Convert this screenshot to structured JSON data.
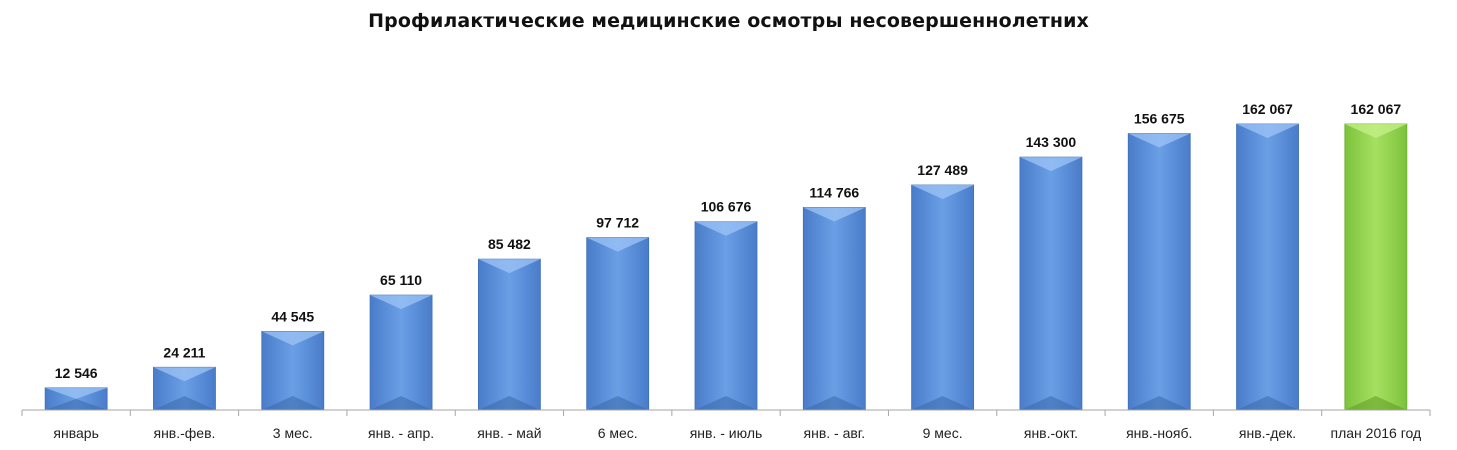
{
  "chart_data": {
    "type": "bar",
    "title": "Профилактические медицинские осмотры несовершеннолетних",
    "xlabel": "",
    "ylabel": "",
    "categories": [
      "январь",
      "янв.-фев.",
      "3 мес.",
      "янв. - апр.",
      "янв. - май",
      "6 мес.",
      "янв. - июль",
      "янв. - авг.",
      "9 мес.",
      "янв.-окт.",
      "янв.-нояб.",
      "янв.-дек.",
      "план 2016 год"
    ],
    "values": [
      12546,
      24211,
      44545,
      65110,
      85482,
      97712,
      106676,
      114766,
      127489,
      143300,
      156675,
      162067,
      162067
    ],
    "value_labels": [
      "12 546",
      "24 211",
      "44 545",
      "65 110",
      "85 482",
      "97 712",
      "106 676",
      "114 766",
      "127 489",
      "143 300",
      "156 675",
      "162 067",
      "162 067"
    ],
    "ylim": [
      0,
      170000
    ],
    "grid": false,
    "legend": "none",
    "bar_colors": [
      "#5b8fdd",
      "#5b8fdd",
      "#5b8fdd",
      "#5b8fdd",
      "#5b8fdd",
      "#5b8fdd",
      "#5b8fdd",
      "#5b8fdd",
      "#5b8fdd",
      "#5b8fdd",
      "#5b8fdd",
      "#5b8fdd",
      "#92d050"
    ],
    "axis_color": "#a6a6a6"
  }
}
